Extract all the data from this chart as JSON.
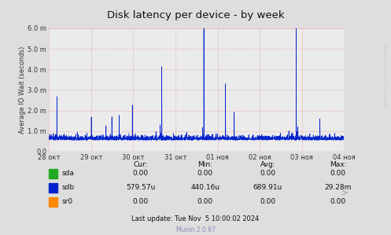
{
  "title": "Disk latency per device - by week",
  "ylabel": "Average IO Wait (seconds)",
  "background_color": "#dedede",
  "plot_background": "#ebebeb",
  "line_color": "#0022cc",
  "ylim": [
    0.0,
    0.006
  ],
  "yticks": [
    0.0,
    0.001,
    0.002,
    0.003,
    0.004,
    0.005,
    0.006
  ],
  "ytick_labels": [
    "0.0",
    "1.0 m",
    "2.0 m",
    "3.0 m",
    "4.0 m",
    "5.0 m",
    "6.0 m"
  ],
  "xtick_labels": [
    "28 окт",
    "29 окт",
    "30 окт",
    "31 окт",
    "01 ноя",
    "02 ноя",
    "03 ноя",
    "04 ноя"
  ],
  "table_data": [
    {
      "name": "sda",
      "color": "#22aa22",
      "cur": "0.00",
      "min": "0.00",
      "avg": "0.00",
      "max": "0.00"
    },
    {
      "name": "sdb",
      "color": "#0022cc",
      "cur": "579.57u",
      "min": "440.16u",
      "avg": "689.91u",
      "max": "29.28m"
    },
    {
      "name": "sr0",
      "color": "#ff8800",
      "cur": "0.00",
      "min": "0.00",
      "avg": "0.00",
      "max": "0.00"
    }
  ],
  "last_update": "Last update: Tue Nov  5 10:00:02 2024",
  "munin_version": "Munin 2.0.67",
  "rrdtool_text": "RRDTOOL / TOBI OETIKER"
}
